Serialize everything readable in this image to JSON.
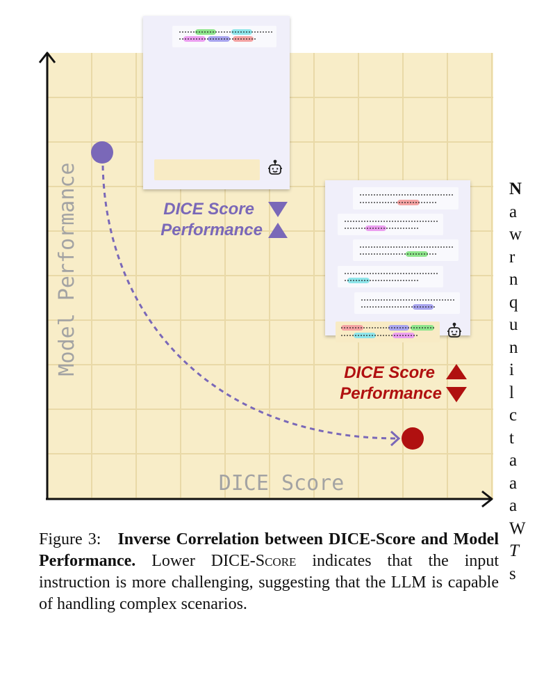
{
  "chart_data": {
    "type": "diagram",
    "xlabel": "DICE Score",
    "ylabel": "Model Performance",
    "annotations": [
      {
        "line1": "DICE Score",
        "line2": "Performance",
        "dice_direction": "down",
        "performance_direction": "up",
        "color": "#7a68b8"
      },
      {
        "line1": "DICE Score",
        "line2": "Performance",
        "dice_direction": "up",
        "performance_direction": "down",
        "color": "#b01010"
      }
    ],
    "points": [
      {
        "label": "low-dice-high-performance",
        "color": "#7a68b8"
      },
      {
        "label": "high-dice-low-performance",
        "color": "#b01010"
      }
    ],
    "icon": "robot-icon",
    "background_color": "#f8edc8"
  },
  "caption": {
    "prefix": "Figure 3:",
    "title": "Inverse Correlation between DICE-Score and Model Performance.",
    "body_part1": "Lower DICE-",
    "body_sc": "Score",
    "body_part2": "indicates that the input instruction is more challenging, suggesting that the LLM is capable of handling complex scenarios."
  },
  "right_column_fragments": [
    "N",
    "a",
    "w",
    "r",
    "n",
    "q",
    "u",
    "n",
    "i",
    "l",
    "c",
    "t",
    "a",
    "a",
    "a",
    "W",
    "T",
    "s"
  ]
}
